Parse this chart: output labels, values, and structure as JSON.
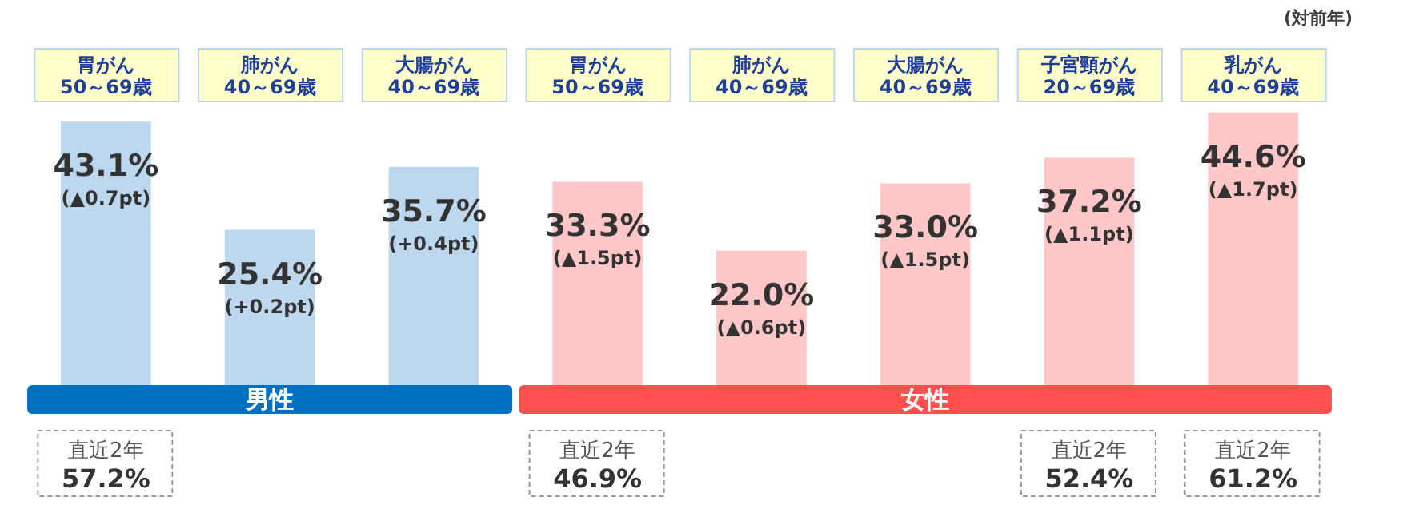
{
  "chart_data": {
    "type": "bar",
    "categories": [
      "胃がん\n50～69歳",
      "肺がん\n40～69歳",
      "大腸がん\n40～69歳",
      "胃がん\n50～69歳",
      "肺がん\n40～69歳",
      "大腸がん\n40～69歳",
      "子宮頸がん\n20～69歳",
      "乳がん\n40～69歳"
    ],
    "values": [
      43.1,
      25.4,
      35.7,
      33.3,
      22.0,
      33.0,
      37.2,
      44.6
    ],
    "colors": [
      "#bdd7ee",
      "#bdd7ee",
      "#bdd7ee",
      "#ffc7c7",
      "#ffc7c7",
      "#ffc7c7",
      "#ffc7c7",
      "#ffc7c7"
    ],
    "value_labels": [
      "43.1%\n(▲0.7pt)",
      "25.4%\n(+0.2pt)",
      "35.7%\n(+0.4pt)",
      "33.3%\n(▲1.5pt)",
      "22.0%\n(▲0.6pt)",
      "33.0%\n(▲1.5pt)",
      "37.2%\n(▲1.1pt)",
      "44.6%\n(▲1.7pt)"
    ],
    "annotations": [
      "(対前年)",
      "男性",
      "女性",
      "直近2年\n57.2%",
      "直近2年\n46.9%",
      "直近2年\n52.4%",
      "直近2年\n61.2%"
    ],
    "legend": false,
    "grid": false
  }
}
